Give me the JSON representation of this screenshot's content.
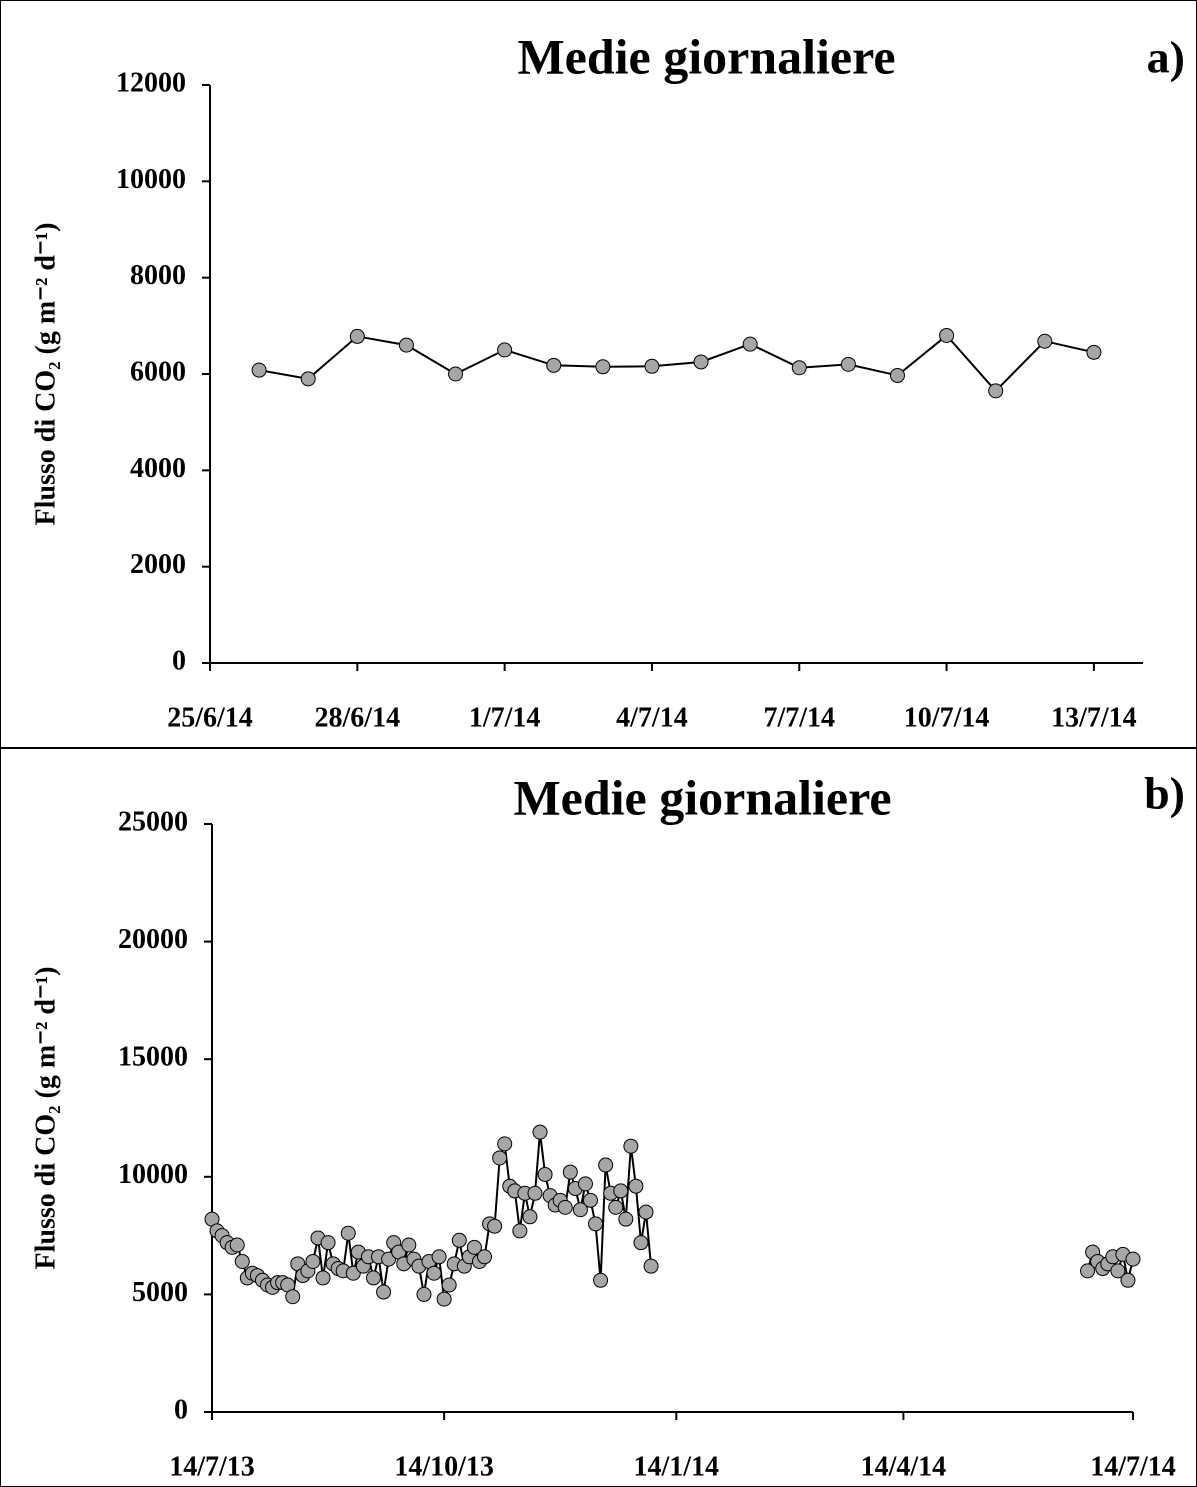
{
  "chart_data": [
    {
      "type": "line",
      "title": "Medie giornaliere",
      "panel_label": "a)",
      "ylabel": "Flusso di CO₂ (g m⁻² d⁻¹)",
      "x": [
        "2014-06-26",
        "2014-06-27",
        "2014-06-28",
        "2014-06-29",
        "2014-06-30",
        "2014-07-01",
        "2014-07-02",
        "2014-07-03",
        "2014-07-04",
        "2014-07-05",
        "2014-07-06",
        "2014-07-07",
        "2014-07-08",
        "2014-07-09",
        "2014-07-10",
        "2014-07-11",
        "2014-07-12",
        "2014-07-13"
      ],
      "series": [
        {
          "color": "#a6a6a6",
          "line_color": "#000000",
          "values": [
            6080,
            5900,
            6780,
            6600,
            6000,
            6500,
            6180,
            6150,
            6160,
            6250,
            6620,
            6130,
            6200,
            5970,
            6800,
            5650,
            6680,
            6450
          ]
        }
      ],
      "xlim": [
        "2014-06-25",
        "2014-07-14"
      ],
      "xticks": [
        {
          "value": "2014-06-25",
          "label": "25/6/14"
        },
        {
          "value": "2014-06-28",
          "label": "28/6/14"
        },
        {
          "value": "2014-07-01",
          "label": "1/7/14"
        },
        {
          "value": "2014-07-04",
          "label": "4/7/14"
        },
        {
          "value": "2014-07-07",
          "label": "7/7/14"
        },
        {
          "value": "2014-07-10",
          "label": "10/7/14"
        },
        {
          "value": "2014-07-13",
          "label": "13/7/14"
        }
      ],
      "ylim": [
        0,
        12000
      ],
      "yticks": [
        0,
        2000,
        4000,
        6000,
        8000,
        10000,
        12000
      ]
    },
    {
      "type": "line",
      "title": "Medie giornaliere",
      "panel_label": "b)",
      "ylabel": "Flusso di CO₂ (g m⁻² d⁻¹)",
      "x": [
        "2013-07-14",
        "2013-07-16",
        "2013-07-18",
        "2013-07-20",
        "2013-07-22",
        "2013-07-24",
        "2013-07-26",
        "2013-07-28",
        "2013-07-30",
        "2013-08-01",
        "2013-08-03",
        "2013-08-05",
        "2013-08-07",
        "2013-08-09",
        "2013-08-11",
        "2013-08-13",
        "2013-08-15",
        "2013-08-17",
        "2013-08-19",
        "2013-08-21",
        "2013-08-23",
        "2013-08-25",
        "2013-08-27",
        "2013-08-29",
        "2013-08-31",
        "2013-09-02",
        "2013-09-04",
        "2013-09-06",
        "2013-09-08",
        "2013-09-10",
        "2013-09-12",
        "2013-09-14",
        "2013-09-16",
        "2013-09-18",
        "2013-09-20",
        "2013-09-22",
        "2013-09-24",
        "2013-09-26",
        "2013-09-28",
        "2013-09-30",
        "2013-10-02",
        "2013-10-04",
        "2013-10-06",
        "2013-10-08",
        "2013-10-10",
        "2013-10-12",
        "2013-10-14",
        "2013-10-16",
        "2013-10-18",
        "2013-10-20",
        "2013-10-22",
        "2013-10-24",
        "2013-10-26",
        "2013-10-28",
        "2013-10-30",
        "2013-11-01",
        "2013-11-03",
        "2013-11-05",
        "2013-11-07",
        "2013-11-09",
        "2013-11-11",
        "2013-11-13",
        "2013-11-15",
        "2013-11-17",
        "2013-11-19",
        "2013-11-21",
        "2013-11-23",
        "2013-11-25",
        "2013-11-27",
        "2013-11-29",
        "2013-12-01",
        "2013-12-03",
        "2013-12-05",
        "2013-12-07",
        "2013-12-09",
        "2013-12-11",
        "2013-12-13",
        "2013-12-15",
        "2013-12-17",
        "2013-12-19",
        "2013-12-21",
        "2013-12-23",
        "2013-12-25",
        "2013-12-27",
        "2013-12-29",
        "2013-12-31",
        "2014-01-02",
        "2014-01-04",
        "2014-03-15",
        "2014-06-26",
        "2014-06-28",
        "2014-06-30",
        "2014-07-02",
        "2014-07-04",
        "2014-07-06",
        "2014-07-08",
        "2014-07-10",
        "2014-07-12",
        "2014-07-14"
      ],
      "series": [
        {
          "color": "#a6a6a6",
          "line_color": "#000000",
          "values": [
            8200,
            7700,
            7500,
            7200,
            7000,
            7100,
            6400,
            5700,
            5900,
            5800,
            5600,
            5400,
            5300,
            5500,
            5500,
            5400,
            4900,
            6300,
            5800,
            6000,
            6400,
            7400,
            5700,
            7200,
            6300,
            6100,
            6000,
            7600,
            5900,
            6800,
            6200,
            6600,
            5700,
            6600,
            5100,
            6500,
            7200,
            6800,
            6300,
            7100,
            6500,
            6200,
            5000,
            6400,
            5900,
            6600,
            4800,
            5400,
            6300,
            7300,
            6200,
            6600,
            7000,
            6400,
            6600,
            8000,
            7900,
            10800,
            11400,
            9600,
            9400,
            7700,
            9300,
            8300,
            9300,
            11900,
            10100,
            9200,
            8800,
            9000,
            8700,
            10200,
            9500,
            8600,
            9700,
            9000,
            8000,
            5600,
            10500,
            9300,
            8700,
            9400,
            8200,
            11300,
            9600,
            7200,
            8500,
            6200,
            null,
            6000,
            6800,
            6400,
            6100,
            6300,
            6600,
            6000,
            6700,
            5600,
            6500
          ]
        }
      ],
      "xlim": [
        "2013-07-14",
        "2014-07-14"
      ],
      "xticks": [
        {
          "value": "2013-07-14",
          "label": "14/7/13"
        },
        {
          "value": "2013-10-14",
          "label": "14/10/13"
        },
        {
          "value": "2014-01-14",
          "label": "14/1/14"
        },
        {
          "value": "2014-04-14",
          "label": "14/4/14"
        },
        {
          "value": "2014-07-14",
          "label": "14/7/14"
        }
      ],
      "ylim": [
        0,
        25000
      ],
      "yticks": [
        0,
        5000,
        10000,
        15000,
        20000,
        25000
      ]
    }
  ]
}
